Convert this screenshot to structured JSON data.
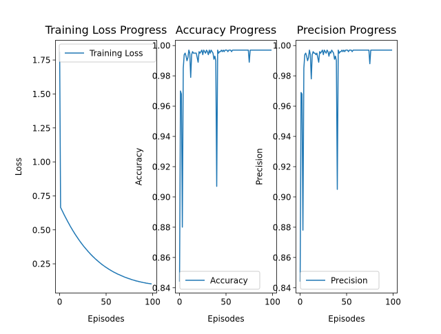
{
  "chart_data": [
    {
      "type": "line",
      "title": "Training Loss Progress",
      "xlabel": "Episodes",
      "ylabel": "Loss",
      "xlim": [
        -4.5,
        104.5
      ],
      "ylim": [
        0.035,
        1.895
      ],
      "xticks": [
        0,
        50,
        100
      ],
      "xtick_labels": [
        "0",
        "50",
        "100"
      ],
      "yticks": [
        0.25,
        0.5,
        0.75,
        1.0,
        1.25,
        1.5,
        1.75
      ],
      "ytick_labels": [
        "0.25",
        "0.50",
        "0.75",
        "1.00",
        "1.25",
        "1.50",
        "1.75"
      ],
      "legend_position": "top-left",
      "color": "#1f77b4",
      "series": [
        {
          "name": "Training Loss",
          "x": [
            0,
            1,
            2,
            3,
            4,
            5,
            6,
            7,
            8,
            9,
            10,
            11,
            12,
            13,
            14,
            15,
            16,
            17,
            18,
            19,
            20,
            21,
            22,
            23,
            24,
            25,
            26,
            27,
            28,
            29,
            30,
            31,
            32,
            33,
            34,
            35,
            36,
            37,
            38,
            39,
            40,
            41,
            42,
            43,
            44,
            45,
            46,
            47,
            48,
            49,
            50,
            51,
            52,
            53,
            54,
            55,
            56,
            57,
            58,
            59,
            60,
            61,
            62,
            63,
            64,
            65,
            66,
            67,
            68,
            69,
            70,
            71,
            72,
            73,
            74,
            75,
            76,
            77,
            78,
            79,
            80,
            81,
            82,
            83,
            84,
            85,
            86,
            87,
            88,
            89,
            90,
            91,
            92,
            93,
            94,
            95,
            96,
            97,
            98,
            99
          ],
          "values": [
            1.81,
            0.665,
            0.651,
            0.637,
            0.623,
            0.609,
            0.596,
            0.583,
            0.57,
            0.557,
            0.545,
            0.532,
            0.52,
            0.509,
            0.497,
            0.486,
            0.475,
            0.464,
            0.454,
            0.444,
            0.434,
            0.424,
            0.414,
            0.405,
            0.396,
            0.387,
            0.378,
            0.37,
            0.362,
            0.354,
            0.346,
            0.338,
            0.331,
            0.323,
            0.316,
            0.309,
            0.302,
            0.296,
            0.289,
            0.283,
            0.277,
            0.271,
            0.265,
            0.259,
            0.254,
            0.248,
            0.243,
            0.238,
            0.233,
            0.228,
            0.224,
            0.219,
            0.215,
            0.21,
            0.206,
            0.202,
            0.198,
            0.194,
            0.19,
            0.187,
            0.183,
            0.18,
            0.176,
            0.173,
            0.17,
            0.167,
            0.164,
            0.161,
            0.158,
            0.155,
            0.152,
            0.15,
            0.147,
            0.145,
            0.142,
            0.14,
            0.138,
            0.135,
            0.133,
            0.131,
            0.129,
            0.127,
            0.125,
            0.123,
            0.122,
            0.12,
            0.118,
            0.117,
            0.115,
            0.114,
            0.112,
            0.111,
            0.11,
            0.108,
            0.107,
            0.106,
            0.105,
            0.104,
            0.103,
            0.102
          ]
        }
      ]
    },
    {
      "type": "line",
      "title": "Accuracy Progress",
      "xlabel": "Episodes",
      "ylabel": "Accuracy",
      "xlim": [
        -4.5,
        104.5
      ],
      "ylim": [
        0.8365,
        1.0035
      ],
      "xticks": [
        0,
        50,
        100
      ],
      "xtick_labels": [
        "0",
        "50",
        "100"
      ],
      "yticks": [
        0.84,
        0.86,
        0.88,
        0.9,
        0.92,
        0.94,
        0.96,
        0.98,
        1.0
      ],
      "ytick_labels": [
        "0.84",
        "0.86",
        "0.88",
        "0.90",
        "0.92",
        "0.94",
        "0.96",
        "0.98",
        "1.00"
      ],
      "legend_position": "bottom-right",
      "color": "#1f77b4",
      "series": [
        {
          "name": "Accuracy",
          "x": [
            0,
            1,
            2,
            3,
            4,
            5,
            6,
            7,
            8,
            9,
            10,
            11,
            12,
            13,
            14,
            15,
            16,
            17,
            18,
            19,
            20,
            21,
            22,
            23,
            24,
            25,
            26,
            27,
            28,
            29,
            30,
            31,
            32,
            33,
            34,
            35,
            36,
            37,
            38,
            39,
            40,
            41,
            42,
            43,
            44,
            45,
            46,
            47,
            48,
            49,
            50,
            51,
            52,
            53,
            54,
            55,
            56,
            57,
            58,
            59,
            60,
            61,
            62,
            63,
            64,
            65,
            66,
            67,
            68,
            69,
            70,
            71,
            72,
            73,
            74,
            75,
            76,
            77,
            78,
            79,
            80,
            81,
            82,
            83,
            84,
            85,
            86,
            87,
            88,
            89,
            90,
            91,
            92,
            93,
            94,
            95,
            96,
            97,
            98,
            99
          ],
          "values": [
            0.844,
            0.97,
            0.968,
            0.88,
            0.985,
            0.994,
            0.995,
            0.993,
            0.99,
            0.992,
            0.997,
            0.995,
            0.979,
            0.994,
            0.996,
            0.995,
            0.995,
            0.995,
            0.995,
            0.992,
            0.989,
            0.996,
            0.995,
            0.996,
            0.997,
            0.994,
            0.997,
            0.996,
            0.995,
            0.997,
            0.996,
            0.994,
            0.997,
            0.995,
            0.997,
            0.996,
            0.995,
            0.991,
            0.993,
            0.99,
            0.907,
            0.997,
            0.995,
            0.996,
            0.996,
            0.997,
            0.996,
            0.997,
            0.996,
            0.997,
            0.997,
            0.997,
            0.996,
            0.997,
            0.997,
            0.997,
            0.996,
            0.997,
            0.997,
            0.997,
            0.997,
            0.997,
            0.997,
            0.997,
            0.997,
            0.997,
            0.997,
            0.997,
            0.997,
            0.997,
            0.997,
            0.997,
            0.997,
            0.997,
            0.997,
            0.989,
            0.997,
            0.997,
            0.997,
            0.997,
            0.997,
            0.997,
            0.997,
            0.997,
            0.997,
            0.997,
            0.997,
            0.997,
            0.997,
            0.997,
            0.997,
            0.997,
            0.997,
            0.997,
            0.997,
            0.997,
            0.997,
            0.997,
            0.997,
            0.997
          ]
        }
      ]
    },
    {
      "type": "line",
      "title": "Precision Progress",
      "xlabel": "Episodes",
      "ylabel": "Precision",
      "xlim": [
        -4.5,
        104.5
      ],
      "ylim": [
        0.8365,
        1.0035
      ],
      "xticks": [
        0,
        50,
        100
      ],
      "xtick_labels": [
        "0",
        "50",
        "100"
      ],
      "yticks": [
        0.84,
        0.86,
        0.88,
        0.9,
        0.92,
        0.94,
        0.96,
        0.98,
        1.0
      ],
      "ytick_labels": [
        "0.84",
        "0.86",
        "0.88",
        "0.90",
        "0.92",
        "0.94",
        "0.96",
        "0.98",
        "1.00"
      ],
      "legend_position": "bottom-right",
      "color": "#1f77b4",
      "series": [
        {
          "name": "Precision",
          "x": [
            0,
            1,
            2,
            3,
            4,
            5,
            6,
            7,
            8,
            9,
            10,
            11,
            12,
            13,
            14,
            15,
            16,
            17,
            18,
            19,
            20,
            21,
            22,
            23,
            24,
            25,
            26,
            27,
            28,
            29,
            30,
            31,
            32,
            33,
            34,
            35,
            36,
            37,
            38,
            39,
            40,
            41,
            42,
            43,
            44,
            45,
            46,
            47,
            48,
            49,
            50,
            51,
            52,
            53,
            54,
            55,
            56,
            57,
            58,
            59,
            60,
            61,
            62,
            63,
            64,
            65,
            66,
            67,
            68,
            69,
            70,
            71,
            72,
            73,
            74,
            75,
            76,
            77,
            78,
            79,
            80,
            81,
            82,
            83,
            84,
            85,
            86,
            87,
            88,
            89,
            90,
            91,
            92,
            93,
            94,
            95,
            96,
            97,
            98,
            99
          ],
          "values": [
            0.844,
            0.969,
            0.968,
            0.878,
            0.985,
            0.994,
            0.995,
            0.993,
            0.99,
            0.992,
            0.997,
            0.994,
            0.978,
            0.994,
            0.996,
            0.995,
            0.995,
            0.994,
            0.995,
            0.992,
            0.989,
            0.996,
            0.995,
            0.996,
            0.997,
            0.994,
            0.997,
            0.996,
            0.995,
            0.997,
            0.996,
            0.993,
            0.996,
            0.995,
            0.997,
            0.996,
            0.995,
            0.991,
            0.993,
            0.99,
            0.905,
            0.997,
            0.995,
            0.996,
            0.996,
            0.997,
            0.996,
            0.997,
            0.996,
            0.997,
            0.997,
            0.997,
            0.996,
            0.997,
            0.997,
            0.997,
            0.996,
            0.997,
            0.997,
            0.997,
            0.997,
            0.997,
            0.997,
            0.997,
            0.997,
            0.997,
            0.997,
            0.997,
            0.997,
            0.997,
            0.997,
            0.997,
            0.997,
            0.997,
            0.997,
            0.988,
            0.997,
            0.997,
            0.997,
            0.997,
            0.997,
            0.997,
            0.997,
            0.997,
            0.997,
            0.997,
            0.997,
            0.997,
            0.997,
            0.997,
            0.997,
            0.997,
            0.997,
            0.997,
            0.997,
            0.997,
            0.997,
            0.997,
            0.997,
            0.997
          ]
        }
      ]
    }
  ]
}
